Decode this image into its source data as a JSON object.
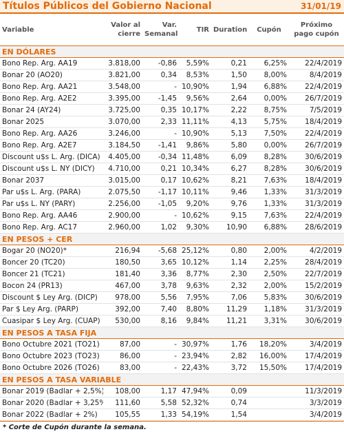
{
  "header": {
    "title": "Títulos Públicos del Gobierno Nacional",
    "date": "31/01/19"
  },
  "columns": [
    "Variable",
    "Valor al cierre",
    "Var. Semanal",
    "TIR",
    "Duration",
    "Cupón",
    "Próximo pago cupón"
  ],
  "sections": [
    {
      "title": "EN DÓLARES",
      "rows": [
        [
          "Bono Rep. Arg. AA19",
          "3.818,00",
          "-0,86",
          "5,59%",
          "0,21",
          "6,25%",
          "22/4/2019"
        ],
        [
          "Bonar 20 (AO20)",
          "3.821,00",
          "0,34",
          "8,53%",
          "1,50",
          "8,00%",
          "8/4/2019"
        ],
        [
          "Bono Rep. Arg. AA21",
          "3.548,00",
          "-",
          "10,90%",
          "1,94",
          "6,88%",
          "22/4/2019"
        ],
        [
          "Bono Rep. Arg. A2E2",
          "3.395,00",
          "-1,45",
          "9,56%",
          "2,64",
          "0,00%",
          "26/7/2019"
        ],
        [
          "Bonar 24 (AY24)",
          "3.725,00",
          "0,35",
          "10,17%",
          "2,22",
          "8,75%",
          "7/5/2019"
        ],
        [
          "Bonar 2025",
          "3.070,00",
          "2,33",
          "11,11%",
          "4,13",
          "5,75%",
          "18/4/2019"
        ],
        [
          "Bono Rep. Arg. AA26",
          "3.246,00",
          "-",
          "10,90%",
          "5,13",
          "7,50%",
          "22/4/2019"
        ],
        [
          "Bono Rep. Arg. A2E7",
          "3.184,50",
          "-1,41",
          "9,86%",
          "5,80",
          "0,00%",
          "26/7/2019"
        ],
        [
          "Discount u$s L. Arg. (DICA)",
          "4.405,00",
          "-0,34",
          "11,48%",
          "6,09",
          "8,28%",
          "30/6/2019"
        ],
        [
          "Discount u$s L. NY (DICY)",
          "4.710,00",
          "0,21",
          "10,34%",
          "6,27",
          "8,28%",
          "30/6/2019"
        ],
        [
          "Bonar 2037",
          "3.015,00",
          "0,17",
          "10,62%",
          "8,21",
          "7,63%",
          "18/4/2019"
        ],
        [
          "Par u$s L. Arg. (PARA)",
          "2.075,50",
          "-1,17",
          "10,11%",
          "9,46",
          "1,33%",
          "31/3/2019"
        ],
        [
          "Par u$s L. NY (PARY)",
          "2.256,00",
          "-1,05",
          "9,20%",
          "9,76",
          "1,33%",
          "31/3/2019"
        ],
        [
          "Bono Rep. Arg. AA46",
          "2.900,00",
          "-",
          "10,62%",
          "9,15",
          "7,63%",
          "22/4/2019"
        ],
        [
          "Bono Rep. Arg. AC17",
          "2.960,00",
          "1,02",
          "9,30%",
          "10,90",
          "6,88%",
          "28/6/2019"
        ]
      ]
    },
    {
      "title": "EN PESOS + CER",
      "rows": [
        [
          "Bogar 20 (NO20)*",
          "216,94",
          "-5,68",
          "25,12%",
          "0,80",
          "2,00%",
          "4/2/2019"
        ],
        [
          "Boncer 20 (TC20)",
          "180,50",
          "3,65",
          "10,12%",
          "1,14",
          "2,25%",
          "28/4/2019"
        ],
        [
          "Boncer 21 (TC21)",
          "181,40",
          "3,36",
          "8,77%",
          "2,30",
          "2,50%",
          "22/7/2019"
        ],
        [
          "Bocon 24 (PR13)",
          "467,00",
          "3,78",
          "9,63%",
          "2,32",
          "2,00%",
          "15/2/2019"
        ],
        [
          "Discount $ Ley Arg. (DICP)",
          "978,00",
          "5,56",
          "7,95%",
          "7,06",
          "5,83%",
          "30/6/2019"
        ],
        [
          "Par $ Ley Arg. (PARP)",
          "392,00",
          "7,40",
          "8,80%",
          "11,29",
          "1,18%",
          "31/3/2019"
        ],
        [
          "Cuasipar $ Ley Arg. (CUAP)",
          "530,00",
          "8,16",
          "9,84%",
          "11,21",
          "3,31%",
          "30/6/2019"
        ]
      ]
    },
    {
      "title": "EN PESOS A TASA FIJA",
      "rows": [
        [
          "Bono Octubre 2021 (TO21)",
          "87,00",
          "-",
          "30,97%",
          "1,76",
          "18,20%",
          "3/4/2019"
        ],
        [
          "Bono Octubre 2023 (TO23)",
          "86,00",
          "-",
          "23,94%",
          "2,82",
          "16,00%",
          "17/4/2019"
        ],
        [
          "Bono Octubre 2026 (TO26)",
          "83,00",
          "-",
          "22,43%",
          "3,72",
          "15,50%",
          "17/4/2019"
        ]
      ]
    },
    {
      "title": "EN PESOS A TASA VARIABLE",
      "rows": [
        [
          "Bonar 2019 (Badlar + 2,5%)",
          "108,00",
          "1,17",
          "47,94%",
          "0,09",
          "",
          "11/3/2019"
        ],
        [
          "Bonar 2020 (Badlar + 3,25%",
          "111,60",
          "5,58",
          "52,32%",
          "0,74",
          "",
          "3/3/2019"
        ],
        [
          "Bonar 2022 (Badlar + 2%)",
          "105,55",
          "1,33",
          "54,19%",
          "1,54",
          "",
          "3/4/2019"
        ]
      ]
    }
  ],
  "footnote": "* Corte de Cupón durante la semana."
}
